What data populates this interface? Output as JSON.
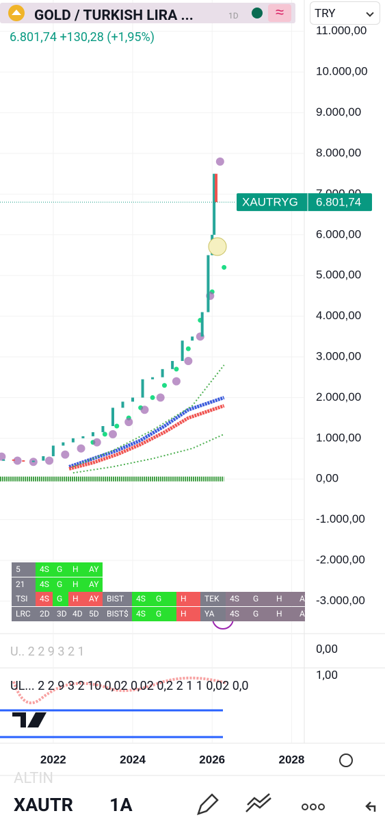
{
  "header": {
    "title": "GOLD / TURKISH LIRA ...",
    "interval": "1D",
    "price": "6.801,74",
    "change": "+130,28",
    "change_pct": "(+1,95%)",
    "currency": "TRY"
  },
  "chart_data": {
    "type": "candlestick",
    "x": [
      2020.75,
      2021.0,
      2021.25,
      2021.5,
      2021.75,
      2022.0,
      2022.25,
      2022.5,
      2022.75,
      2023.0,
      2023.25,
      2023.5,
      2023.75,
      2024.0,
      2024.25,
      2024.5,
      2024.75,
      2025.0,
      2025.25,
      2025.5,
      2025.75,
      2025.9,
      2026.0,
      2026.05,
      2026.1
    ],
    "values": [
      480,
      460,
      430,
      450,
      560,
      820,
      900,
      1000,
      1050,
      1150,
      1300,
      1750,
      1900,
      2000,
      2450,
      2500,
      2700,
      2900,
      3400,
      3500,
      4100,
      5500,
      6000,
      7500,
      6801.74
    ],
    "up_color": "#26a69a",
    "down_color": "#ef5350",
    "series": [
      {
        "color": "#1fdc86",
        "marker": "dot",
        "x": [
          2023.0,
          2023.3,
          2023.6,
          2023.9,
          2024.2,
          2024.5,
          2024.8,
          2025.1,
          2025.4,
          2025.7,
          2026.0,
          2026.3
        ],
        "values": [
          900,
          1100,
          1300,
          1500,
          1750,
          2000,
          2300,
          2700,
          3200,
          3900,
          4600,
          5200
        ]
      },
      {
        "color": "#a066b0",
        "marker": "circle",
        "x": [
          2020.7,
          2021.1,
          2021.5,
          2021.9,
          2022.3,
          2022.7,
          2023.1,
          2023.5,
          2023.9,
          2024.3,
          2024.7,
          2025.1,
          2025.4,
          2025.7,
          2025.95,
          2026.05,
          2026.2
        ],
        "values": [
          550,
          450,
          420,
          450,
          600,
          750,
          900,
          1100,
          1400,
          1700,
          2000,
          2400,
          2900,
          3500,
          4500,
          5700,
          7800
        ]
      },
      {
        "color": "#3b5bdb",
        "marker": "line",
        "x": [
          2022.4,
          2023.0,
          2023.6,
          2024.2,
          2024.8,
          2025.4,
          2026.0,
          2026.3
        ],
        "values": [
          300,
          500,
          700,
          950,
          1300,
          1700,
          1900,
          2000
        ]
      },
      {
        "color": "#ef5350",
        "marker": "line",
        "x": [
          2022.4,
          2023.0,
          2023.6,
          2024.2,
          2024.8,
          2025.4,
          2026.0,
          2026.3
        ],
        "values": [
          250,
          400,
          600,
          850,
          1150,
          1500,
          1700,
          1800
        ]
      },
      {
        "color": "#4caf50",
        "marker": "dotted",
        "x": [
          2022.5,
          2023.5,
          2024.5,
          2025.5,
          2026.3
        ],
        "values": [
          300,
          700,
          1200,
          1800,
          2800
        ]
      },
      {
        "color": "#4caf50",
        "marker": "dotted",
        "x": [
          2022.5,
          2023.5,
          2024.5,
          2025.5,
          2026.3
        ],
        "values": [
          150,
          300,
          500,
          750,
          1100
        ]
      },
      {
        "color": "#43a047",
        "marker": "thick",
        "x": [
          2020.66,
          2026.3
        ],
        "values": [
          0,
          0
        ]
      }
    ],
    "price_label": {
      "name": "XAUTRYG",
      "value": 6801.74,
      "label": "6.801,74"
    },
    "xlim": [
      2020.66,
      2028.32
    ],
    "xticks": [
      2022,
      2024,
      2026,
      2028
    ],
    "ylim": [
      -3800,
      11770
    ],
    "yticks": [
      {
        "value": -3000,
        "label": "-3.000,00"
      },
      {
        "value": -2000,
        "label": "-2.000,00"
      },
      {
        "value": -1000,
        "label": "-1.000,00"
      },
      {
        "value": 0,
        "label": "0,00"
      },
      {
        "value": 1000,
        "label": "1.000,00"
      },
      {
        "value": 2000,
        "label": "2.000,00"
      },
      {
        "value": 3000,
        "label": "3.000,00"
      },
      {
        "value": 4000,
        "label": "4.000,00"
      },
      {
        "value": 5000,
        "label": "5.000,00"
      },
      {
        "value": 6000,
        "label": "6.000,00"
      },
      {
        "value": 7000,
        "label": "7.000,00"
      },
      {
        "value": 8000,
        "label": "8.000,00"
      },
      {
        "value": 9000,
        "label": "9.000,00"
      },
      {
        "value": 10000,
        "label": "10.000,00"
      },
      {
        "value": 11000,
        "label": "11.000,00"
      }
    ],
    "grid": true
  },
  "table": {
    "rows": [
      [
        "5",
        "4S",
        "G",
        "H",
        "AY"
      ],
      [
        "21",
        "4S",
        "G",
        "H",
        "AY"
      ],
      [
        "TSI",
        "4S",
        "G",
        "H",
        "AY",
        "BIST",
        "4S",
        "G",
        "H",
        "TEK",
        "4S",
        "G",
        "H",
        "AY"
      ],
      [
        "LRC",
        "2D",
        "3D",
        "4D",
        "5D",
        "BIST$",
        "4S",
        "G",
        "H",
        "YA",
        "4S",
        "G",
        "H",
        "AY"
      ]
    ],
    "colors": [
      [
        "#7d7d8a",
        "#29e02f",
        "#29e02f",
        "#29e02f",
        "#29e02f"
      ],
      [
        "#7d7d8a",
        "#29e02f",
        "#29e02f",
        "#29e02f",
        "#29e02f"
      ],
      [
        "#7d7d8a",
        "#f25a5a",
        "#29e02f",
        "#f25a5a",
        "#f25a5a",
        "#7d7d8a",
        "#29e02f",
        "#29e02f",
        "#f25a5a",
        "#7d7d8a",
        "#8c7a8c",
        "#8c7a8c",
        "#8c7a8c",
        "#8c7a8c"
      ],
      [
        "#7d7d8a",
        "#7d7d8a",
        "#7d7d8a",
        "#7d7d8a",
        "#7d7d8a",
        "#7d7d8a",
        "#29e02f",
        "#29e02f",
        "#f25a5a",
        "#7d7d8a",
        "#8c7a8c",
        "#8c7a8c",
        "#8c7a8c",
        "#8c7a8c"
      ]
    ]
  },
  "panes": [
    {
      "text": "U.. 2 2 9 3 2 1",
      "axis_label": "0,00"
    },
    {
      "text": "UL... 2 2 9 3 2 10 0,02 0,02 0,2 2 1 1 0,02 0,0",
      "axis_label": "1,00"
    }
  ],
  "toolbar": {
    "exchange": "ALTIN",
    "symbol": "XAUTR",
    "interval": "1A"
  }
}
